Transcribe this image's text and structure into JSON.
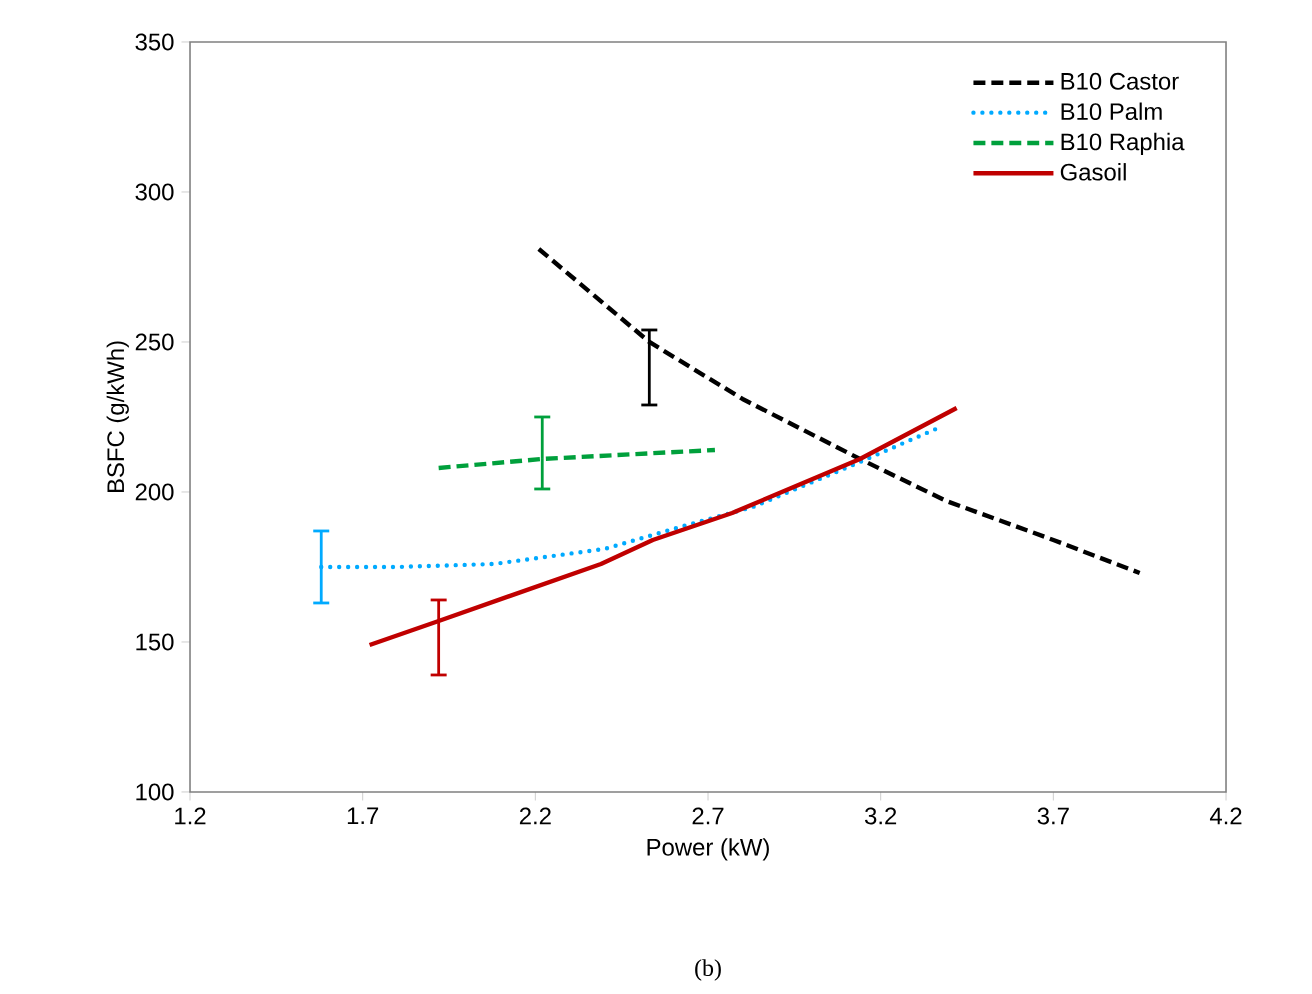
{
  "chart_data": {
    "type": "line",
    "xlabel": "Power (kW)",
    "ylabel": "BSFC (g/kWh)",
    "xlim": [
      1.2,
      4.2
    ],
    "xticks": [
      1.2,
      1.7,
      2.2,
      2.7,
      3.2,
      3.7,
      4.2
    ],
    "ylim": [
      100,
      350
    ],
    "yticks": [
      100,
      150,
      200,
      250,
      300,
      350
    ],
    "grid": false,
    "legend": "top right",
    "marker": "none",
    "annotations": [
      "(b)"
    ],
    "series": [
      {
        "name": "B10 Castor",
        "color": "#000000",
        "line_style": "dashed",
        "x": [
          2.21,
          2.53,
          2.8,
          3.14,
          3.39,
          3.7,
          3.95
        ],
        "values": [
          281,
          250,
          231,
          211,
          197,
          184,
          173
        ],
        "errors": [
          null,
          [
            229,
            254
          ],
          null,
          null,
          null,
          null,
          null
        ]
      },
      {
        "name": "B10 Palm",
        "color": "#00aaff",
        "line_style": "dotted",
        "x": [
          1.58,
          1.8,
          2.08,
          2.4,
          2.64,
          2.83,
          3.12,
          3.36
        ],
        "values": [
          175,
          175,
          176,
          181,
          189,
          195,
          209,
          221
        ],
        "errors": [
          [
            163,
            187
          ],
          null,
          null,
          null,
          null,
          null,
          null,
          null
        ]
      },
      {
        "name": "B10 Raphia",
        "color": "#00a03c",
        "line_style": "dashed",
        "x": [
          1.92,
          2.22,
          2.72
        ],
        "values": [
          208,
          211,
          214
        ],
        "errors": [
          null,
          [
            201,
            225
          ],
          null
        ]
      },
      {
        "name": "Gasoil",
        "color": "#c00000",
        "line_style": "solid",
        "x": [
          1.72,
          1.92,
          2.39,
          2.54,
          2.77,
          3.14,
          3.42
        ],
        "values": [
          149,
          157,
          176,
          184,
          193,
          211,
          228
        ],
        "errors": [
          null,
          [
            139,
            164
          ],
          null,
          null,
          null,
          null,
          null
        ]
      }
    ]
  }
}
